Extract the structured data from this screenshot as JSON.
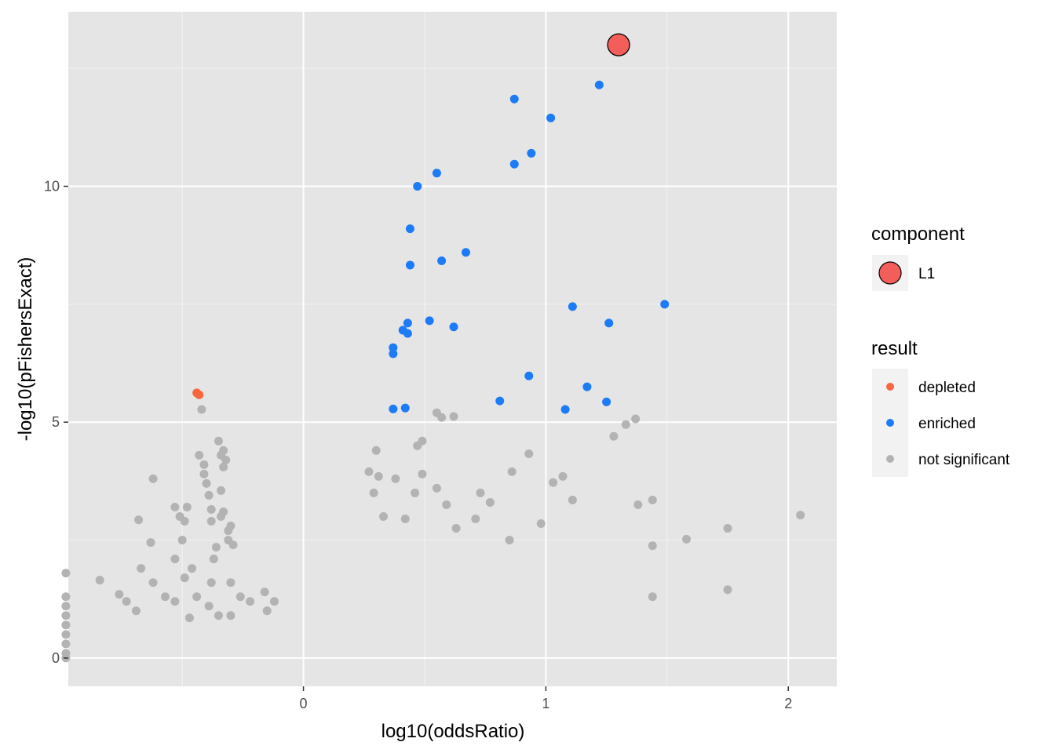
{
  "chart_data": {
    "type": "scatter",
    "title": "",
    "xlabel": "log10(oddsRatio)",
    "ylabel": "-log10(pFishersExact)",
    "xlim": [
      -0.97,
      2.2
    ],
    "ylim": [
      -0.6,
      13.7
    ],
    "x_ticks": [
      0,
      1,
      2
    ],
    "y_ticks": [
      0,
      5,
      10
    ],
    "x_tick_labels": [
      "0",
      "1",
      "2"
    ],
    "y_tick_labels": [
      "0",
      "5",
      "10"
    ],
    "grid": true,
    "colors": {
      "panel_bg": "#e5e5e5",
      "grid": "#ffffff",
      "depleted": "#f8663f",
      "enriched": "#1c7bf7",
      "not_significant": "#b3b3b3",
      "component_fill": "#f35e5a",
      "component_stroke": "#000000"
    },
    "legend": {
      "placement": "right",
      "component": {
        "title": "component",
        "entries": [
          "L1"
        ]
      },
      "result": {
        "title": "result",
        "entries": [
          "depleted",
          "enriched",
          "not significant"
        ]
      }
    },
    "series": [
      {
        "name": "depleted",
        "points": [
          [
            -0.44,
            5.62
          ],
          [
            -0.43,
            5.58
          ]
        ]
      },
      {
        "name": "enriched",
        "points": [
          [
            1.22,
            12.15
          ],
          [
            0.87,
            11.85
          ],
          [
            1.02,
            11.45
          ],
          [
            0.94,
            10.7
          ],
          [
            0.87,
            10.47
          ],
          [
            0.55,
            10.28
          ],
          [
            0.47,
            10.0
          ],
          [
            0.44,
            9.1
          ],
          [
            0.67,
            8.6
          ],
          [
            0.57,
            8.42
          ],
          [
            0.44,
            8.33
          ],
          [
            1.49,
            7.5
          ],
          [
            1.11,
            7.45
          ],
          [
            0.52,
            7.15
          ],
          [
            1.26,
            7.1
          ],
          [
            0.43,
            7.1
          ],
          [
            0.62,
            7.02
          ],
          [
            0.41,
            6.95
          ],
          [
            0.43,
            6.88
          ],
          [
            0.37,
            6.58
          ],
          [
            0.37,
            6.45
          ],
          [
            0.93,
            5.98
          ],
          [
            1.17,
            5.75
          ],
          [
            0.81,
            5.45
          ],
          [
            1.25,
            5.43
          ],
          [
            0.37,
            5.28
          ],
          [
            0.42,
            5.3
          ],
          [
            1.08,
            5.27
          ]
        ]
      },
      {
        "name": "not significant",
        "points": [
          [
            -0.42,
            5.27
          ],
          [
            -0.35,
            4.6
          ],
          [
            -0.33,
            4.4
          ],
          [
            -0.34,
            4.3
          ],
          [
            -0.43,
            4.3
          ],
          [
            -0.32,
            4.2
          ],
          [
            -0.41,
            4.1
          ],
          [
            -0.33,
            4.05
          ],
          [
            -0.41,
            3.9
          ],
          [
            -0.62,
            3.8
          ],
          [
            -0.4,
            3.7
          ],
          [
            -0.34,
            3.55
          ],
          [
            -0.39,
            3.45
          ],
          [
            -0.53,
            3.2
          ],
          [
            -0.38,
            3.15
          ],
          [
            -0.33,
            3.1
          ],
          [
            -0.48,
            3.2
          ],
          [
            -0.51,
            3.0
          ],
          [
            -0.34,
            3.0
          ],
          [
            -0.49,
            2.9
          ],
          [
            -0.38,
            2.9
          ],
          [
            -0.68,
            2.93
          ],
          [
            -0.3,
            2.8
          ],
          [
            -0.31,
            2.7
          ],
          [
            -0.5,
            2.5
          ],
          [
            -0.63,
            2.45
          ],
          [
            -0.36,
            2.35
          ],
          [
            -0.31,
            2.5
          ],
          [
            -0.29,
            2.4
          ],
          [
            -0.53,
            2.1
          ],
          [
            -0.37,
            2.1
          ],
          [
            -0.67,
            1.9
          ],
          [
            -0.46,
            1.9
          ],
          [
            -0.98,
            1.8
          ],
          [
            -0.84,
            1.65
          ],
          [
            -0.49,
            1.7
          ],
          [
            -0.62,
            1.6
          ],
          [
            -0.3,
            1.6
          ],
          [
            -0.38,
            1.6
          ],
          [
            -0.16,
            1.4
          ],
          [
            -0.57,
            1.3
          ],
          [
            -0.76,
            1.35
          ],
          [
            -0.44,
            1.3
          ],
          [
            -0.26,
            1.3
          ],
          [
            -0.73,
            1.2
          ],
          [
            -0.53,
            1.2
          ],
          [
            -0.22,
            1.2
          ],
          [
            -0.12,
            1.2
          ],
          [
            -0.39,
            1.1
          ],
          [
            -0.69,
            1.0
          ],
          [
            -0.15,
            1.0
          ],
          [
            -0.35,
            0.9
          ],
          [
            -0.3,
            0.9
          ],
          [
            -0.47,
            0.85
          ],
          [
            -0.98,
            1.3
          ],
          [
            -0.98,
            1.1
          ],
          [
            -0.98,
            0.9
          ],
          [
            -0.98,
            0.7
          ],
          [
            -0.98,
            0.5
          ],
          [
            -0.98,
            0.3
          ],
          [
            -0.98,
            0.1
          ],
          [
            -0.98,
            0.0
          ],
          [
            0.93,
            4.33
          ],
          [
            0.86,
            3.95
          ],
          [
            1.07,
            3.85
          ],
          [
            1.03,
            3.72
          ],
          [
            1.37,
            5.07
          ],
          [
            1.33,
            4.95
          ],
          [
            1.28,
            4.7
          ],
          [
            1.44,
            3.35
          ],
          [
            1.38,
            3.25
          ],
          [
            1.11,
            3.35
          ],
          [
            2.05,
            3.03
          ],
          [
            1.75,
            2.75
          ],
          [
            1.58,
            2.52
          ],
          [
            1.44,
            2.38
          ],
          [
            1.75,
            1.45
          ],
          [
            1.44,
            1.3
          ],
          [
            0.98,
            2.85
          ],
          [
            0.85,
            2.5
          ],
          [
            0.55,
            5.2
          ],
          [
            0.57,
            5.1
          ],
          [
            0.62,
            5.12
          ],
          [
            0.49,
            4.6
          ],
          [
            0.47,
            4.5
          ],
          [
            0.3,
            4.4
          ],
          [
            0.27,
            3.95
          ],
          [
            0.49,
            3.9
          ],
          [
            0.31,
            3.85
          ],
          [
            0.38,
            3.8
          ],
          [
            0.29,
            3.5
          ],
          [
            0.55,
            3.6
          ],
          [
            0.73,
            3.5
          ],
          [
            0.59,
            3.25
          ],
          [
            0.77,
            3.3
          ],
          [
            0.46,
            3.5
          ],
          [
            0.33,
            3.0
          ],
          [
            0.42,
            2.95
          ],
          [
            0.71,
            2.95
          ],
          [
            0.63,
            2.75
          ]
        ]
      },
      {
        "name": "L1",
        "points": [
          [
            1.3,
            13.0
          ]
        ]
      }
    ]
  }
}
